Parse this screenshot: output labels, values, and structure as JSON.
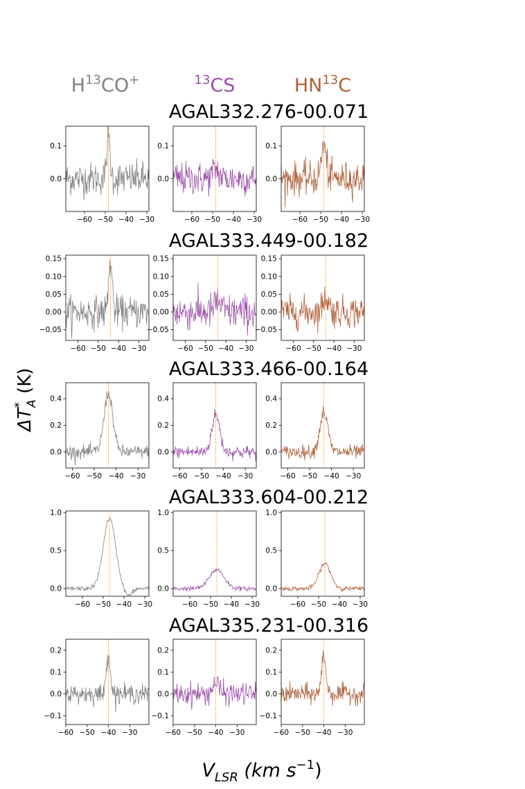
{
  "figure": {
    "ylabel_main": "ΔT",
    "ylabel_sup": "*",
    "ylabel_sub": "A",
    "ylabel_unit": "(K)",
    "xlabel_main": "V",
    "xlabel_sub": "LSR",
    "xlabel_unit": "(km s",
    "xlabel_exp": "−1",
    "xlabel_close": ")"
  },
  "columns": [
    {
      "label": "H",
      "iso": "13",
      "rest": "CO",
      "sup": "+",
      "color": "#808080"
    },
    {
      "label": "",
      "iso": "13",
      "rest": "CS",
      "sup": "",
      "color": "#9b4ea9"
    },
    {
      "label": "HN",
      "iso": "13",
      "rest": "C",
      "sup": "",
      "color": "#b0603a"
    }
  ],
  "vline_color": "#ff8c00",
  "chart_data": [
    {
      "type": "line",
      "title": "AGAL332.276-00.071",
      "xlim": [
        -69,
        -29
      ],
      "xticks": [
        -60,
        -50,
        -40,
        -30
      ],
      "ylim": [
        -0.1,
        0.16
      ],
      "yticks": [
        0.1,
        0.0
      ],
      "ytick_labels": [
        "0.1",
        "0.0"
      ],
      "vline": -48.5,
      "series": [
        {
          "peak": 0.13,
          "width": 0.8,
          "noise": 0.025,
          "dip": 0
        },
        {
          "peak": 0.03,
          "width": 1.5,
          "noise": 0.025,
          "dip": 0
        },
        {
          "peak": 0.1,
          "width": 1.2,
          "noise": 0.025,
          "dip": 0
        }
      ]
    },
    {
      "type": "line",
      "title": "AGAL333.449-00.182",
      "xlim": [
        -66,
        -25
      ],
      "xticks": [
        -60,
        -50,
        -40,
        -30
      ],
      "ylim": [
        -0.08,
        0.16
      ],
      "yticks": [
        0.15,
        0.1,
        0.05,
        0.0,
        -0.05
      ],
      "ytick_labels": [
        "0.15",
        "0.10",
        "0.05",
        "0.00",
        "−0.05"
      ],
      "vline": -44,
      "series": [
        {
          "peak": 0.14,
          "width": 0.9,
          "noise": 0.022,
          "dip": 0
        },
        {
          "peak": 0.03,
          "width": 1.5,
          "noise": 0.025,
          "dip": 0
        },
        {
          "peak": 0.04,
          "width": 1.5,
          "noise": 0.022,
          "dip": 0
        }
      ]
    },
    {
      "type": "line",
      "title": "AGAL333.466-00.164",
      "xlim": [
        -63,
        -25
      ],
      "xticks": [
        -60,
        -50,
        -40,
        -30
      ],
      "ylim": [
        -0.12,
        0.52
      ],
      "yticks": [
        0.4,
        0.2,
        0.0
      ],
      "ytick_labels": [
        "0.4",
        "0.2",
        "0.0"
      ],
      "vline": -43.5,
      "series": [
        {
          "peak": 0.44,
          "width": 2.0,
          "noise": 0.025,
          "dip": 0
        },
        {
          "peak": 0.28,
          "width": 1.8,
          "noise": 0.025,
          "dip": 0
        },
        {
          "peak": 0.3,
          "width": 1.8,
          "noise": 0.025,
          "dip": 0
        }
      ]
    },
    {
      "type": "line",
      "title": "AGAL333.604-00.212",
      "xlim": [
        -68,
        -28
      ],
      "xticks": [
        -60,
        -50,
        -40,
        -30
      ],
      "ylim": [
        -0.1,
        1.02
      ],
      "yticks": [
        1.0,
        0.5,
        0.0
      ],
      "ytick_labels": [
        "1.0",
        "0.5",
        "0.0"
      ],
      "vline": -47,
      "series": [
        {
          "peak": 0.92,
          "width": 3.0,
          "noise": 0.015,
          "dip": -0.1
        },
        {
          "peak": 0.25,
          "width": 3.5,
          "noise": 0.015,
          "dip": 0
        },
        {
          "peak": 0.33,
          "width": 2.8,
          "noise": 0.015,
          "dip": 0
        }
      ]
    },
    {
      "type": "line",
      "title": "AGAL335.231-00.316",
      "xlim": [
        -60,
        -21
      ],
      "xticks": [
        -60,
        -50,
        -40,
        -30
      ],
      "ylim": [
        -0.14,
        0.25
      ],
      "yticks": [
        0.2,
        0.1,
        0.0,
        -0.1
      ],
      "ytick_labels": [
        "0.2",
        "0.1",
        "0.0",
        "−0.1"
      ],
      "vline": -40,
      "series": [
        {
          "peak": 0.19,
          "width": 0.9,
          "noise": 0.022,
          "dip": 0
        },
        {
          "peak": 0.05,
          "width": 1.5,
          "noise": 0.025,
          "dip": 0
        },
        {
          "peak": 0.18,
          "width": 1.0,
          "noise": 0.022,
          "dip": 0
        }
      ]
    }
  ]
}
